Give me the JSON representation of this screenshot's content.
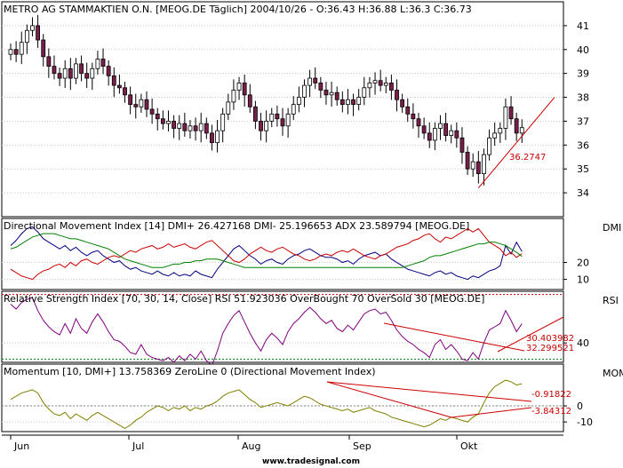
{
  "chart_data": [
    {
      "type": "candlestick",
      "title": "METRO AG STAMMAKTIEN O.N. [MEOG.DE  Täglich] 2004/10/26 - O:36.43 H:36.88 L:36.3 C:36.73",
      "ylim": [
        33,
        42
      ],
      "yticks": [
        "34",
        "35",
        "36",
        "37",
        "38",
        "39",
        "40",
        "41"
      ],
      "x_labels": [
        "Jun",
        "Jul",
        "Aug",
        "Sep",
        "Okt"
      ],
      "up_color": "#ffffff",
      "down_color": "#7a1f4a",
      "close": [
        40.0,
        39.8,
        40.3,
        40.8,
        41.0,
        40.4,
        39.7,
        39.3,
        39.0,
        38.8,
        39.2,
        38.8,
        39.4,
        39.0,
        38.8,
        39.2,
        39.6,
        39.3,
        38.9,
        38.5,
        38.4,
        38.1,
        37.7,
        37.6,
        37.9,
        37.5,
        37.3,
        37.1,
        36.9,
        37.0,
        36.7,
        36.9,
        36.6,
        36.8,
        36.6,
        36.9,
        36.5,
        36.1,
        36.6,
        37.3,
        37.8,
        38.3,
        38.6,
        38.1,
        37.6,
        37.0,
        36.6,
        37.0,
        37.3,
        37.1,
        36.8,
        37.3,
        37.7,
        38.0,
        38.5,
        38.8,
        38.6,
        38.3,
        38.1,
        38.2,
        37.9,
        37.7,
        37.9,
        37.7,
        38.0,
        38.4,
        38.6,
        38.7,
        38.5,
        38.6,
        38.3,
        37.9,
        37.6,
        37.3,
        37.1,
        36.8,
        36.5,
        36.2,
        36.7,
        36.9,
        36.4,
        36.6,
        36.3,
        35.7,
        35.0,
        35.3,
        34.8,
        35.6,
        36.3,
        36.5,
        36.7,
        37.6,
        37.1,
        36.5,
        36.73
      ],
      "annotations": [
        {
          "text": "36.2747",
          "color": "#cc0000"
        }
      ],
      "trendline": {
        "from_index": 86,
        "from_value": 34.2,
        "to_index": 100,
        "to_value": 38.0
      }
    },
    {
      "type": "line",
      "title": "Directional Movement Index [14] DMI+ 26.427168 DMI- 25.196653 ADX 23.589794 [MEOG.DE]",
      "panel_label": "DMI",
      "ylim": [
        4,
        46
      ],
      "yticks": [
        "10",
        "20"
      ],
      "series": [
        {
          "name": "DMI+",
          "color": "#000080",
          "values": [
            30,
            33,
            37,
            40,
            41,
            38,
            34,
            32,
            30,
            28,
            30,
            27,
            29,
            26,
            24,
            26,
            27,
            24,
            22,
            20,
            21,
            18,
            16,
            17,
            15,
            14,
            13,
            15,
            13,
            12,
            14,
            12,
            13,
            12,
            15,
            13,
            12,
            11,
            16,
            20,
            24,
            28,
            30,
            27,
            24,
            22,
            19,
            21,
            22,
            20,
            19,
            22,
            24,
            25,
            27,
            28,
            26,
            24,
            23,
            23,
            22,
            20,
            21,
            19,
            22,
            24,
            25,
            26,
            24,
            25,
            22,
            20,
            18,
            16,
            15,
            14,
            13,
            12,
            14,
            15,
            13,
            14,
            12,
            11,
            10,
            12,
            11,
            13,
            15,
            16,
            18,
            30,
            25,
            32,
            26.43
          ]
        },
        {
          "name": "DMI-",
          "color": "#cc0000",
          "values": [
            16,
            14,
            12,
            11,
            10,
            13,
            15,
            16,
            18,
            19,
            17,
            20,
            18,
            21,
            22,
            20,
            19,
            21,
            23,
            24,
            23,
            25,
            27,
            26,
            28,
            29,
            30,
            28,
            29,
            31,
            29,
            30,
            31,
            29,
            28,
            30,
            32,
            33,
            30,
            27,
            24,
            21,
            20,
            22,
            25,
            27,
            29,
            27,
            26,
            28,
            29,
            27,
            25,
            24,
            22,
            21,
            22,
            24,
            25,
            24,
            26,
            27,
            26,
            28,
            26,
            24,
            23,
            22,
            24,
            25,
            27,
            29,
            30,
            31,
            33,
            34,
            36,
            37,
            34,
            32,
            35,
            34,
            36,
            38,
            40,
            38,
            40,
            36,
            32,
            30,
            28,
            24,
            26,
            23,
            25.2
          ]
        },
        {
          "name": "ADX",
          "color": "#008000",
          "values": [
            28,
            29,
            31,
            33,
            35,
            36,
            37,
            37,
            37,
            36,
            35,
            34,
            34,
            33,
            32,
            31,
            30,
            29,
            28,
            26,
            24,
            22,
            21,
            20,
            19,
            18,
            17,
            17,
            17,
            18,
            19,
            19,
            20,
            20,
            21,
            21,
            22,
            22,
            22,
            21,
            20,
            19,
            18,
            17,
            17,
            17,
            17,
            17,
            17,
            17,
            17,
            17,
            17,
            17,
            17,
            17,
            17,
            17,
            17,
            17,
            17,
            17,
            17,
            17,
            17,
            17,
            17,
            17,
            17,
            17,
            17,
            17,
            17,
            18,
            19,
            20,
            21,
            23,
            24,
            24,
            25,
            26,
            27,
            28,
            29,
            30,
            31,
            31,
            32,
            32,
            31,
            30,
            28,
            26,
            23.59
          ]
        }
      ]
    },
    {
      "type": "line",
      "title": "Relative Strength Index [70, 30, 14, Close] RSI 51.923036 OverBought 70 OverSold 30 [MEOG.DE]",
      "panel_label": "RSI",
      "ylim": [
        28,
        72
      ],
      "yticks": [
        "40"
      ],
      "levels": [
        {
          "name": "OverBought",
          "value": 70,
          "color": "#cc0000"
        },
        {
          "name": "OverSold",
          "value": 30,
          "color": "#008000"
        }
      ],
      "series": [
        {
          "name": "RSI",
          "color": "#800080",
          "values": [
            64,
            61,
            65,
            67,
            68,
            60,
            54,
            50,
            47,
            45,
            52,
            46,
            55,
            49,
            46,
            53,
            58,
            53,
            47,
            42,
            41,
            38,
            34,
            33,
            39,
            33,
            31,
            30,
            29,
            31,
            28,
            32,
            29,
            33,
            30,
            35,
            29,
            26,
            35,
            46,
            52,
            57,
            60,
            53,
            46,
            40,
            35,
            42,
            46,
            43,
            39,
            47,
            52,
            55,
            59,
            62,
            59,
            55,
            52,
            54,
            49,
            47,
            51,
            48,
            53,
            58,
            60,
            61,
            58,
            59,
            54,
            48,
            44,
            41,
            39,
            36,
            34,
            31,
            39,
            42,
            36,
            39,
            35,
            30,
            29,
            34,
            30,
            40,
            48,
            50,
            52,
            60,
            54,
            47,
            51.92
          ]
        }
      ],
      "annotations": [
        {
          "text": "30.403982",
          "color": "#cc0000"
        },
        {
          "text": "32.299521",
          "color": "#cc0000"
        }
      ]
    },
    {
      "type": "line",
      "title": "Momentum [10, DMI+] 13.758369 ZeroLine 0 (Directional Movement Index)",
      "panel_label": "MOM",
      "ylim": [
        -16,
        26
      ],
      "yticks": [
        "0",
        "-10"
      ],
      "levels": [
        {
          "name": "ZeroLine",
          "value": 0,
          "color": "#808080"
        }
      ],
      "series": [
        {
          "name": "Momentum",
          "color": "#808000",
          "values": [
            4,
            6,
            8,
            9,
            10,
            8,
            2,
            -2,
            -5,
            -6,
            -4,
            -8,
            -5,
            -7,
            -9,
            -6,
            -4,
            -6,
            -8,
            -10,
            -12,
            -14,
            -12,
            -9,
            -7,
            -4,
            -2,
            0,
            -1,
            -3,
            -1,
            -2,
            0,
            -3,
            -1,
            -2,
            0,
            1,
            3,
            6,
            8,
            9,
            10,
            7,
            4,
            2,
            -1,
            0,
            1,
            2,
            1,
            0,
            2,
            4,
            6,
            5,
            3,
            1,
            0,
            -1,
            -2,
            -3,
            -2,
            -4,
            -3,
            -2,
            -1,
            -3,
            -4,
            -5,
            -7,
            -8,
            -9,
            -10,
            -11,
            -12,
            -13,
            -12,
            -10,
            -8,
            -9,
            -7,
            -8,
            -9,
            -10,
            -7,
            -5,
            2,
            8,
            12,
            14,
            16,
            15,
            13,
            13.76
          ]
        }
      ],
      "annotations": [
        {
          "text": "-0.91822",
          "color": "#cc0000"
        },
        {
          "text": "-3.84312",
          "color": "#cc0000"
        }
      ]
    }
  ],
  "footer": {
    "watermark": "www.tradesignal.com"
  }
}
